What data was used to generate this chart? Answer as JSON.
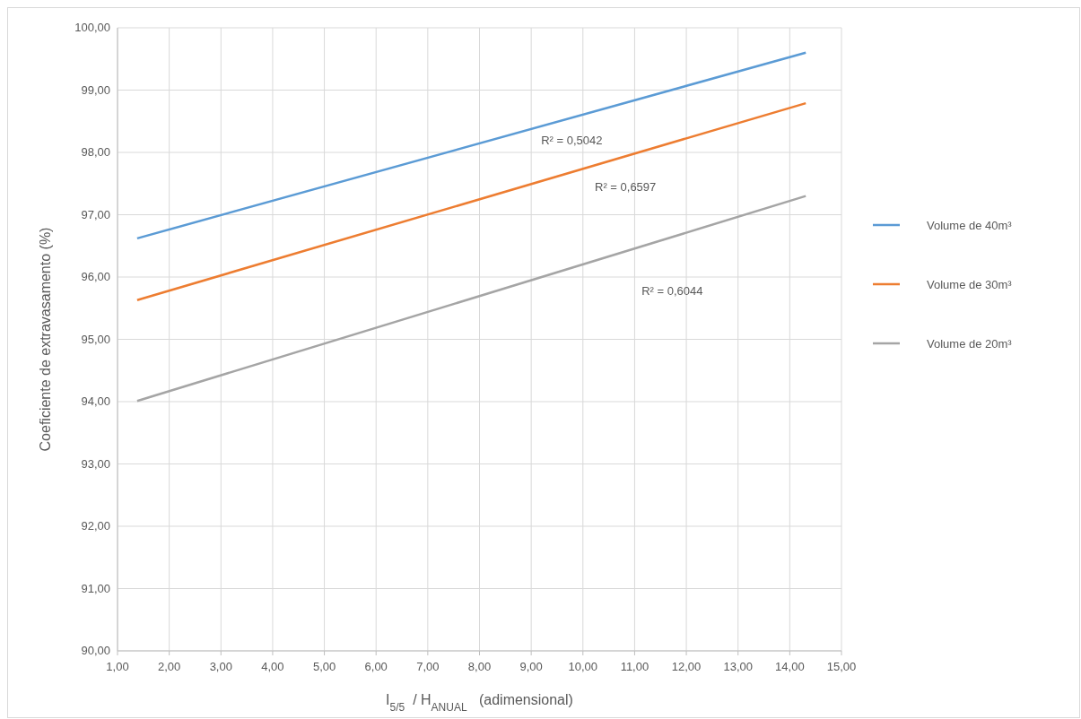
{
  "chart_data": {
    "type": "line",
    "xlabel": "I$_{5/5}$ / H$_{ANUAL}$  (adimensional)",
    "ylabel": "Coeficiente de extravasamento (%)",
    "xlim": [
      1,
      15
    ],
    "ylim": [
      90,
      100
    ],
    "xticks": [
      {
        "value": 1,
        "label": "1,00"
      },
      {
        "value": 2,
        "label": "2,00"
      },
      {
        "value": 3,
        "label": "3,00"
      },
      {
        "value": 4,
        "label": "4,00"
      },
      {
        "value": 5,
        "label": "5,00"
      },
      {
        "value": 6,
        "label": "6,00"
      },
      {
        "value": 7,
        "label": "7,00"
      },
      {
        "value": 8,
        "label": "8,00"
      },
      {
        "value": 9,
        "label": "9,00"
      },
      {
        "value": 10,
        "label": "10,00"
      },
      {
        "value": 11,
        "label": "11,00"
      },
      {
        "value": 12,
        "label": "12,00"
      },
      {
        "value": 13,
        "label": "13,00"
      },
      {
        "value": 14,
        "label": "14,00"
      },
      {
        "value": 15,
        "label": "15,00"
      }
    ],
    "yticks": [
      {
        "value": 90,
        "label": "90,00"
      },
      {
        "value": 91,
        "label": "91,00"
      },
      {
        "value": 92,
        "label": "92,00"
      },
      {
        "value": 93,
        "label": "93,00"
      },
      {
        "value": 94,
        "label": "94,00"
      },
      {
        "value": 95,
        "label": "95,00"
      },
      {
        "value": 96,
        "label": "96,00"
      },
      {
        "value": 97,
        "label": "97,00"
      },
      {
        "value": 98,
        "label": "98,00"
      },
      {
        "value": 99,
        "label": "99,00"
      },
      {
        "value": 100,
        "label": "100,00"
      }
    ],
    "x": [
      1.38,
      14.31
    ],
    "grid": true,
    "legend": "right",
    "marker": "none",
    "line_style": "solid",
    "series": [
      {
        "name": "Volume de 40m³",
        "color": "#5b9bd5",
        "values": [
          96.62,
          99.6
        ]
      },
      {
        "name": "Volume de 30m³",
        "color": "#ed7d31",
        "values": [
          95.63,
          98.79
        ]
      },
      {
        "name": "Volume de 20m³",
        "color": "#a5a5a5",
        "values": [
          94.01,
          97.3
        ]
      }
    ],
    "annotations": [
      "R² = 0,5042",
      "R² = 0,6597",
      "R² = 0,6044"
    ]
  }
}
